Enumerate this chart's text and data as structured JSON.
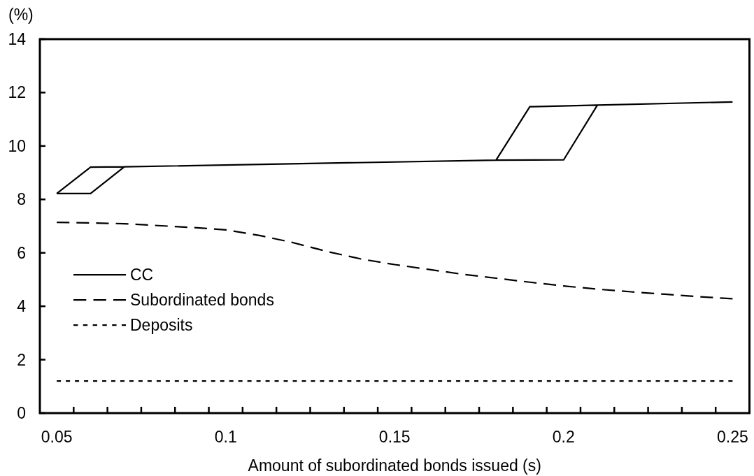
{
  "chart_data": {
    "type": "line",
    "xlabel": "Amount of subordinated bonds issued (s)",
    "ylabel": "(%)",
    "xlim": [
      0.045,
      0.255
    ],
    "xticks": [
      0.05,
      {
        "value": 0.055,
        "label": null
      },
      {
        "value": 0.065,
        "label": null
      },
      {
        "value": 0.075,
        "label": null
      },
      {
        "value": 0.085,
        "label": null
      },
      {
        "value": 0.095,
        "label": null
      },
      0.1,
      {
        "value": 0.105,
        "label": null
      },
      {
        "value": 0.115,
        "label": null
      },
      {
        "value": 0.125,
        "label": null
      },
      {
        "value": 0.135,
        "label": null
      },
      {
        "value": 0.145,
        "label": null
      },
      0.15,
      {
        "value": 0.155,
        "label": null
      },
      {
        "value": 0.165,
        "label": null
      },
      {
        "value": 0.175,
        "label": null
      },
      {
        "value": 0.185,
        "label": null
      },
      {
        "value": 0.195,
        "label": null
      },
      0.2,
      {
        "value": 0.205,
        "label": null
      },
      {
        "value": 0.215,
        "label": null
      },
      {
        "value": 0.225,
        "label": null
      },
      {
        "value": 0.235,
        "label": null
      },
      {
        "value": 0.245,
        "label": null
      },
      0.25
    ],
    "ylim": [
      0,
      14
    ],
    "yticks": [
      0,
      2,
      4,
      6,
      8,
      10,
      12,
      14
    ],
    "legend": "left",
    "series": [
      {
        "name": "CC",
        "color": "#000000",
        "line_style": "solid",
        "x": [
          0.05,
          0.06,
          0.07,
          0.18,
          0.2,
          0.21,
          0.25,
          null,
          0.05,
          0.06,
          0.07,
          null,
          0.18,
          0.19,
          0.21
        ],
        "values": [
          8.22,
          8.22,
          9.22,
          9.47,
          9.48,
          11.53,
          11.65,
          null,
          8.22,
          9.21,
          9.22,
          null,
          9.47,
          11.47,
          11.53
        ]
      },
      {
        "name": "Subordinated bonds",
        "color": "#000000",
        "line_style": "dashed",
        "x": [
          0.05,
          0.06,
          0.07,
          0.08,
          0.09,
          0.1,
          0.11,
          0.12,
          0.13,
          0.14,
          0.15,
          0.16,
          0.17,
          0.18,
          0.19,
          0.2,
          0.21,
          0.22,
          0.23,
          0.24,
          0.25
        ],
        "values": [
          7.14,
          7.12,
          7.09,
          7.02,
          6.95,
          6.86,
          6.65,
          6.38,
          6.05,
          5.77,
          5.56,
          5.38,
          5.2,
          5.05,
          4.9,
          4.76,
          4.64,
          4.54,
          4.45,
          4.36,
          4.28
        ]
      },
      {
        "name": "Deposits",
        "color": "#000000",
        "line_style": "dotted",
        "x": [
          0.05,
          0.25
        ],
        "values": [
          1.2,
          1.2
        ]
      }
    ]
  }
}
